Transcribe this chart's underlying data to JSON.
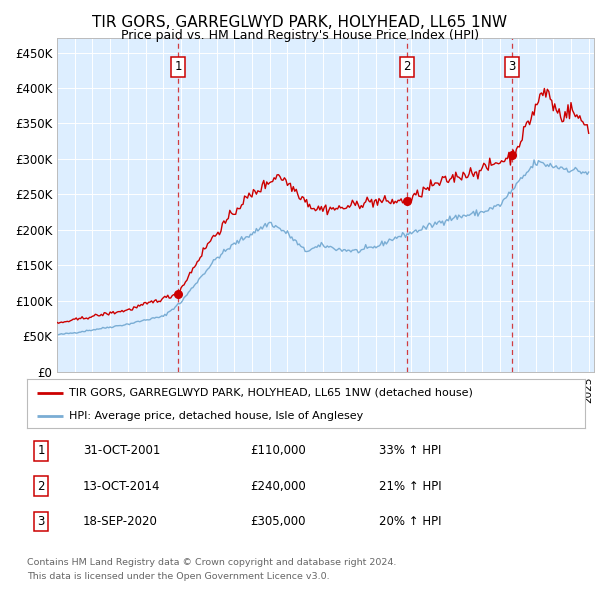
{
  "title": "TIR GORS, GARREGLWYD PARK, HOLYHEAD, LL65 1NW",
  "subtitle": "Price paid vs. HM Land Registry's House Price Index (HPI)",
  "bg_color": "#ddeeff",
  "ylim": [
    0,
    470000
  ],
  "yticks": [
    0,
    50000,
    100000,
    150000,
    200000,
    250000,
    300000,
    350000,
    400000,
    450000
  ],
  "ytick_labels": [
    "£0",
    "£50K",
    "£100K",
    "£150K",
    "£200K",
    "£250K",
    "£300K",
    "£350K",
    "£400K",
    "£450K"
  ],
  "sale_prices": [
    110000,
    240000,
    305000
  ],
  "sale_labels": [
    "1",
    "2",
    "3"
  ],
  "sale_pct": [
    "33%",
    "21%",
    "20%"
  ],
  "sale_date_strs": [
    "31-OCT-2001",
    "13-OCT-2014",
    "18-SEP-2020"
  ],
  "sale_prices_fmt": [
    "£110,000",
    "£240,000",
    "£305,000"
  ],
  "legend_line1": "TIR GORS, GARREGLWYD PARK, HOLYHEAD, LL65 1NW (detached house)",
  "legend_line2": "HPI: Average price, detached house, Isle of Anglesey",
  "footer1": "Contains HM Land Registry data © Crown copyright and database right 2024.",
  "footer2": "This data is licensed under the Open Government Licence v3.0.",
  "red_color": "#cc0000",
  "blue_color": "#7aadd4",
  "hpi_key_years": [
    1995,
    1996,
    1997,
    1998,
    1999,
    2000,
    2001,
    2002,
    2003,
    2004,
    2005,
    2006,
    2007,
    2008,
    2009,
    2010,
    2011,
    2012,
    2013,
    2014,
    2015,
    2016,
    2017,
    2018,
    2019,
    2020,
    2021,
    2022,
    2023,
    2024,
    2025
  ],
  "hpi_key_vals": [
    52000,
    55000,
    59000,
    63000,
    67000,
    73000,
    78000,
    98000,
    130000,
    160000,
    180000,
    195000,
    210000,
    195000,
    170000,
    178000,
    172000,
    170000,
    176000,
    188000,
    196000,
    205000,
    215000,
    220000,
    225000,
    235000,
    265000,
    295000,
    290000,
    285000,
    280000
  ],
  "prop_key_years": [
    1995.0,
    1997.0,
    1999.0,
    2001.83,
    2003.5,
    2005.5,
    2007.5,
    2008.5,
    2009.5,
    2011.0,
    2012.5,
    2014.78,
    2016.0,
    2017.5,
    2019.0,
    2020.72,
    2021.5,
    2022.3,
    2022.7,
    2023.0,
    2023.5,
    2024.0,
    2024.5,
    2025.0
  ],
  "prop_key_vals": [
    68000,
    78000,
    87000,
    110000,
    180000,
    240000,
    278000,
    255000,
    230000,
    230000,
    240000,
    240000,
    260000,
    275000,
    285000,
    305000,
    345000,
    390000,
    395000,
    375000,
    360000,
    370000,
    355000,
    345000
  ]
}
